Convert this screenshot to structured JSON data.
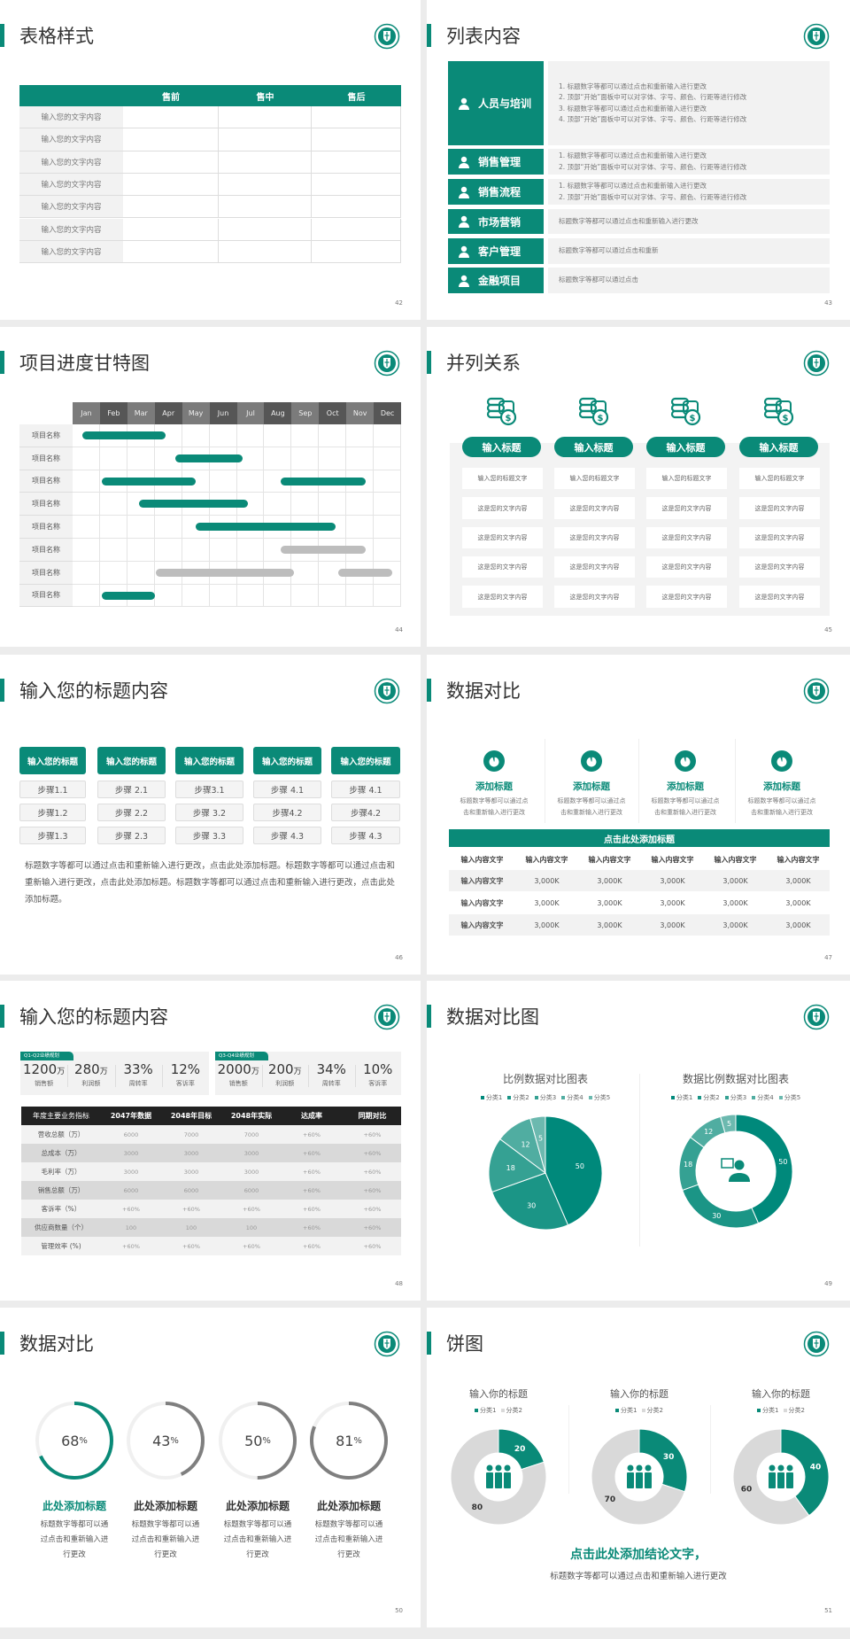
{
  "brand": {
    "accent": "#0a8a78",
    "accent_shades": [
      "#00897b",
      "#1b9586",
      "#35a193",
      "#50ada1",
      "#6cb9af"
    ],
    "gray_bar": "#bdbdbd",
    "gray_ring": "#7f7f7f",
    "light_gray": "#d9d9d9",
    "dark": "#222222",
    "logo_icon": "school-emblem-icon"
  },
  "s42": {
    "title": "表格样式",
    "page": "42",
    "columns": [
      "",
      "售前",
      "售中",
      "售后"
    ],
    "rows": [
      "输入您的文字内容",
      "输入您的文字内容",
      "输入您的文字内容",
      "输入您的文字内容",
      "输入您的文字内容",
      "输入您的文字内容",
      "输入您的文字内容"
    ]
  },
  "s43": {
    "title": "列表内容",
    "page": "43",
    "items": [
      {
        "label": "人员与培训",
        "icon": "people-training-icon",
        "lines": [
          "1.  标题数字等都可以通过点击和重新输入进行更改",
          "2.  顶部“开始”面板中可以对字体、字号、颜色、行距等进行修改",
          "3.  标题数字等都可以通过点击和重新输入进行更改",
          "4.  顶部“开始”面板中可以对字体、字号、颜色、行距等进行修改"
        ]
      },
      {
        "label": "销售管理",
        "icon": "sales-person-icon",
        "lines": [
          "1.  标题数字等都可以通过点击和重新输入进行更改",
          "2.  顶部“开始”面板中可以对字体、字号、颜色、行距等进行修改"
        ]
      },
      {
        "label": "销售流程",
        "icon": "cycle-icon",
        "lines": [
          "1.  标题数字等都可以通过点击和重新输入进行更改",
          "2.  顶部“开始”面板中可以对字体、字号、颜色、行距等进行修改"
        ]
      },
      {
        "label": "市场营销",
        "icon": "bar-chart-icon",
        "lines": [
          "标题数字等都可以通过点击和重新输入进行更改"
        ]
      },
      {
        "label": "客户管理",
        "icon": "customers-icon",
        "lines": [
          "标题数字等都可以通过点击和重新"
        ]
      },
      {
        "label": "金融项目",
        "icon": "finance-hand-icon",
        "lines": [
          "标题数字等都可以通过点击"
        ]
      }
    ]
  },
  "s44": {
    "title": "项目进度甘特图",
    "page": "44",
    "months": [
      "Jan",
      "Feb",
      "Mar",
      "Apr",
      "May",
      "Jun",
      "Jul",
      "Aug",
      "Sep",
      "Oct",
      "Nov",
      "Dec"
    ],
    "tasks": [
      {
        "label": "项目名称",
        "bars": [
          {
            "start": 1.35,
            "end": 4.4,
            "status": "active"
          }
        ]
      },
      {
        "label": "项目名称",
        "bars": [
          {
            "start": 4.75,
            "end": 7.2,
            "status": "active"
          }
        ]
      },
      {
        "label": "项目名称",
        "bars": [
          {
            "start": 2.07,
            "end": 5.5,
            "status": "active"
          },
          {
            "start": 8.6,
            "end": 11.7,
            "status": "active"
          }
        ]
      },
      {
        "label": "项目名称",
        "bars": [
          {
            "start": 3.43,
            "end": 7.4,
            "status": "active"
          }
        ]
      },
      {
        "label": "项目名称",
        "bars": [
          {
            "start": 5.5,
            "end": 10.6,
            "status": "active"
          }
        ]
      },
      {
        "label": "项目名称",
        "bars": [
          {
            "start": 8.6,
            "end": 11.7,
            "status": "planned"
          }
        ]
      },
      {
        "label": "项目名称",
        "bars": [
          {
            "start": 4.04,
            "end": 9.1,
            "status": "planned"
          },
          {
            "start": 10.7,
            "end": 12.67,
            "status": "planned"
          }
        ]
      },
      {
        "label": "项目名称",
        "bars": [
          {
            "start": 2.07,
            "end": 4.0,
            "status": "active"
          }
        ]
      }
    ]
  },
  "s45": {
    "title": "并列关系",
    "page": "45",
    "columns": [
      {
        "header": "输入标题",
        "icon": "coins-dollar-icon",
        "cells": [
          "输入您的标题文字",
          "这是您的文字内容",
          "这是您的文字内容",
          "这是您的文字内容",
          "这是您的文字内容"
        ]
      },
      {
        "header": "输入标题",
        "icon": "coins-dollar-icon",
        "cells": [
          "输入您的标题文字",
          "这是您的文字内容",
          "这是您的文字内容",
          "这是您的文字内容",
          "这是您的文字内容"
        ]
      },
      {
        "header": "输入标题",
        "icon": "coins-dollar-icon",
        "cells": [
          "输入您的标题文字",
          "这是您的文字内容",
          "这是您的文字内容",
          "这是您的文字内容",
          "这是您的文字内容"
        ]
      },
      {
        "header": "输入标题",
        "icon": "coins-dollar-icon",
        "cells": [
          "输入您的标题文字",
          "这是您的文字内容",
          "这是您的文字内容",
          "这是您的文字内容",
          "这是您的文字内容"
        ]
      }
    ]
  },
  "s46": {
    "title": "输入您的标题内容",
    "page": "46",
    "columns": [
      {
        "header": "输入您的标题",
        "steps": [
          "步骤1.1",
          "步骤1.2",
          "步骤1.3"
        ]
      },
      {
        "header": "输入您的标题",
        "steps": [
          "步骤 2.1",
          "步骤 2.2",
          "步骤 2.3"
        ]
      },
      {
        "header": "输入您的标题",
        "steps": [
          "步骤3.1",
          "步骤 3.2",
          "步骤 3.3"
        ]
      },
      {
        "header": "输入您的标题",
        "steps": [
          "步骤 4.1",
          "步骤4.2",
          "步骤 4.3"
        ]
      },
      {
        "header": "输入您的标题",
        "steps": [
          "步骤 4.1",
          "步骤4.2",
          "步骤 4.3"
        ]
      }
    ],
    "paragraph": "标题数字等都可以通过点击和重新输入进行更改，点击此处添加标题。标题数字等都可以通过点击和重新输入进行更改，点击此处添加标题。标题数字等都可以通过点击和重新输入进行更改，点击此处添加标题。"
  },
  "s47": {
    "title": "数据对比",
    "page": "47",
    "features": [
      {
        "title": "添加标题",
        "icon": "pie-chart-icon",
        "desc": [
          "标题数字等都可以通过点",
          "击和重新输入进行更改"
        ]
      },
      {
        "title": "添加标题",
        "icon": "pie-chart-icon",
        "desc": [
          "标题数字等都可以通过点",
          "击和重新输入进行更改"
        ]
      },
      {
        "title": "添加标题",
        "icon": "pie-chart-icon",
        "desc": [
          "标题数字等都可以通过点",
          "击和重新输入进行更改"
        ]
      },
      {
        "title": "添加标题",
        "icon": "pie-chart-icon",
        "desc": [
          "标题数字等都可以通过点",
          "击和重新输入进行更改"
        ]
      }
    ],
    "banner": "点击此处添加标题",
    "headers": [
      "输入内容文字",
      "输入内容文字",
      "输入内容文字",
      "输入内容文字",
      "输入内容文字",
      "输入内容文字"
    ],
    "rows": [
      [
        "输入内容文字",
        "3,000K",
        "3,000K",
        "3,000K",
        "3,000K",
        "3,000K"
      ],
      [
        "输入内容文字",
        "3,000K",
        "3,000K",
        "3,000K",
        "3,000K",
        "3,000K"
      ],
      [
        "输入内容文字",
        "3,000K",
        "3,000K",
        "3,000K",
        "3,000K",
        "3,000K"
      ]
    ]
  },
  "s48": {
    "title": "输入您的标题内容",
    "page": "48",
    "kpi_groups": [
      {
        "tag": "Q1-Q2业绩规划",
        "items": [
          {
            "value": "1200",
            "unit": "万",
            "label": "销售额"
          },
          {
            "value": "280",
            "unit": "万",
            "label": "利润额"
          },
          {
            "value": "33%",
            "unit": "",
            "label": "周转率"
          },
          {
            "value": "12%",
            "unit": "",
            "label": "客诉率"
          }
        ]
      },
      {
        "tag": "Q3-Q4业绩规划",
        "items": [
          {
            "value": "2000",
            "unit": "万",
            "label": "销售额"
          },
          {
            "value": "200",
            "unit": "万",
            "label": "利润额"
          },
          {
            "value": "34%",
            "unit": "",
            "label": "周转率"
          },
          {
            "value": "10%",
            "unit": "",
            "label": "客诉率"
          }
        ]
      }
    ],
    "headers": [
      "年度主要业务指标",
      "2047年数据",
      "2048年目标",
      "2048年实际",
      "达成率",
      "同期对比"
    ],
    "rows": [
      [
        "营收总额（万）",
        "6000",
        "7000",
        "7000",
        "+60%",
        "+60%"
      ],
      [
        "总成本（万）",
        "3000",
        "3000",
        "3000",
        "+60%",
        "+60%"
      ],
      [
        "毛利率（万）",
        "3000",
        "3000",
        "3000",
        "+60%",
        "+60%"
      ],
      [
        "销售总额（万）",
        "6000",
        "6000",
        "6000",
        "+60%",
        "+60%"
      ],
      [
        "客诉率（%）",
        "+60%",
        "+60%",
        "+60%",
        "+60%",
        "+60%"
      ],
      [
        "供应商数量（个）",
        "100",
        "100",
        "100",
        "+60%",
        "+60%"
      ],
      [
        "管理效率 (%)",
        "+60%",
        "+60%",
        "+60%",
        "+60%",
        "+60%"
      ]
    ]
  },
  "s49": {
    "title": "数据对比图",
    "page": "49",
    "charts": [
      {
        "type": "pie",
        "title": "比例数据对比图表",
        "categories": [
          "分类1",
          "分类2",
          "分类3",
          "分类4",
          "分类5"
        ],
        "values": [
          50,
          30,
          18,
          12,
          5
        ],
        "legend": "top"
      },
      {
        "type": "donut",
        "title": "数据比例数据对比图表",
        "categories": [
          "分类1",
          "分类2",
          "分类3",
          "分类4",
          "分类5"
        ],
        "values": [
          50,
          30,
          18,
          12,
          5
        ],
        "legend": "top",
        "center_icon": "consultant-icon"
      }
    ]
  },
  "s50": {
    "title": "数据对比",
    "page": "50",
    "items": [
      {
        "value": 68,
        "unit": "%",
        "title": "此处添加标题",
        "desc": [
          "标题数字等都可以通",
          "过点击和重新输入进",
          "行更改"
        ],
        "highlight": true
      },
      {
        "value": 43,
        "unit": "%",
        "title": "此处添加标题",
        "desc": [
          "标题数字等都可以通",
          "过点击和重新输入进",
          "行更改"
        ],
        "highlight": false
      },
      {
        "value": 50,
        "unit": "%",
        "title": "此处添加标题",
        "desc": [
          "标题数字等都可以通",
          "过点击和重新输入进",
          "行更改"
        ],
        "highlight": false
      },
      {
        "value": 81,
        "unit": "%",
        "title": "此处添加标题",
        "desc": [
          "标题数字等都可以通",
          "过点击和重新输入进",
          "行更改"
        ],
        "highlight": false
      }
    ]
  },
  "s51": {
    "title": "饼图",
    "page": "51",
    "charts": [
      {
        "type": "donut",
        "title": "输入你的标题",
        "categories": [
          "分类1",
          "分类2"
        ],
        "values": [
          20,
          80
        ],
        "center_icon": "team-icon"
      },
      {
        "type": "donut",
        "title": "输入你的标题",
        "categories": [
          "分类1",
          "分类2"
        ],
        "values": [
          30,
          70
        ],
        "center_icon": "team-icon"
      },
      {
        "type": "donut",
        "title": "输入你的标题",
        "categories": [
          "分类1",
          "分类2"
        ],
        "values": [
          40,
          60
        ],
        "center_icon": "team-icon"
      }
    ],
    "conclusion": "点击此处添加结论文字，",
    "subtext": "标题数字等都可以通过点击和重新输入进行更改"
  }
}
